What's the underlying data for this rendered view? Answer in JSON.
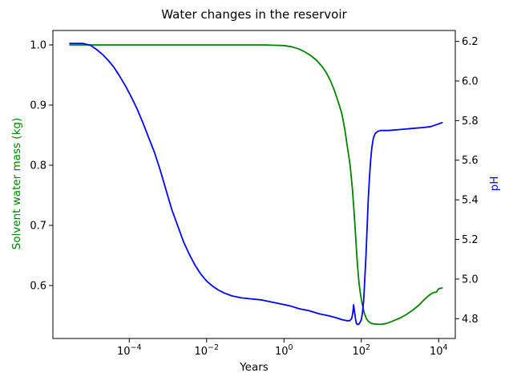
{
  "chart_data": {
    "type": "line",
    "title": "Water changes in the reservoir",
    "xlabel": "Years",
    "ylabel_left": "Solvent water mass (kg)",
    "ylabel_right": "pH",
    "x_scale": "log",
    "x_lim_log10": [
      -5.975,
      4.43
    ],
    "grid": false,
    "legend": "none",
    "x_ticks": [
      {
        "value": 0.0001,
        "base": "10",
        "exp": "−4"
      },
      {
        "value": 0.01,
        "base": "10",
        "exp": "−2"
      },
      {
        "value": 1,
        "base": "10",
        "exp": "0"
      },
      {
        "value": 100.0,
        "base": "10",
        "exp": "2"
      },
      {
        "value": 10000.0,
        "base": "10",
        "exp": "4"
      }
    ],
    "left_axis": {
      "color": "#008000",
      "lim": [
        0.512,
        1.024
      ],
      "tick_values": [
        1.0,
        0.9,
        0.8,
        0.7,
        0.6
      ],
      "tick_labels": [
        "1.0",
        "0.9",
        "0.8",
        "0.7",
        "0.6"
      ]
    },
    "right_axis": {
      "color": "#0000ff",
      "lim": [
        4.7,
        6.255
      ],
      "tick_values": [
        6.2,
        6.0,
        5.8,
        5.6,
        5.4,
        5.2,
        5.0,
        4.8
      ],
      "tick_labels": [
        "6.2",
        "6.0",
        "5.8",
        "5.6",
        "5.4",
        "5.2",
        "5.0",
        "4.8"
      ]
    },
    "series": [
      {
        "name": "solvent-water-mass",
        "axis": "left",
        "color": "#008000",
        "points": [
          [
            2.9e-06,
            1.0
          ],
          [
            1e-05,
            1.0
          ],
          [
            0.0001,
            1.0
          ],
          [
            0.001,
            1.0
          ],
          [
            0.01,
            1.0
          ],
          [
            0.1,
            1.0
          ],
          [
            0.316,
            1.0
          ],
          [
            0.501,
            0.9995
          ],
          [
            1,
            0.999
          ],
          [
            1.58,
            0.997
          ],
          [
            2.51,
            0.993
          ],
          [
            3.55,
            0.988
          ],
          [
            5.01,
            0.982
          ],
          [
            7.08,
            0.974
          ],
          [
            10,
            0.963
          ],
          [
            12.6,
            0.953
          ],
          [
            15.8,
            0.941
          ],
          [
            20,
            0.925
          ],
          [
            25.1,
            0.906
          ],
          [
            31.6,
            0.885
          ],
          [
            37.2,
            0.861
          ],
          [
            42.7,
            0.835
          ],
          [
            51.3,
            0.8
          ],
          [
            58.9,
            0.76
          ],
          [
            66.1,
            0.715
          ],
          [
            72.4,
            0.675
          ],
          [
            79.4,
            0.635
          ],
          [
            87.1,
            0.604
          ],
          [
            95.5,
            0.585
          ],
          [
            105,
            0.57
          ],
          [
            117,
            0.556
          ],
          [
            135,
            0.545
          ],
          [
            155,
            0.54
          ],
          [
            182,
            0.537
          ],
          [
            224,
            0.536
          ],
          [
            316,
            0.5355
          ],
          [
            447,
            0.537
          ],
          [
            646,
            0.541
          ],
          [
            1000,
            0.546
          ],
          [
            1480,
            0.552
          ],
          [
            2240,
            0.56
          ],
          [
            3160,
            0.568
          ],
          [
            3980,
            0.575
          ],
          [
            5010,
            0.581
          ],
          [
            6310,
            0.586
          ],
          [
            7590,
            0.5885
          ],
          [
            8710,
            0.589
          ],
          [
            9330,
            0.592
          ],
          [
            10000,
            0.5945
          ],
          [
            11200,
            0.5955
          ],
          [
            12300,
            0.596
          ]
        ]
      },
      {
        "name": "pH",
        "axis": "right",
        "color": "#0000ff",
        "points": [
          [
            2.9e-06,
            6.19
          ],
          [
            6.3e-06,
            6.19
          ],
          [
            1e-05,
            6.18
          ],
          [
            1.41e-05,
            6.16
          ],
          [
            2e-05,
            6.135
          ],
          [
            2.82e-05,
            6.105
          ],
          [
            3.98e-05,
            6.07
          ],
          [
            5.62e-05,
            6.025
          ],
          [
            7.94e-05,
            5.975
          ],
          [
            0.000112,
            5.92
          ],
          [
            0.000158,
            5.86
          ],
          [
            0.000224,
            5.79
          ],
          [
            0.000316,
            5.715
          ],
          [
            0.000447,
            5.64
          ],
          [
            0.000631,
            5.55
          ],
          [
            0.000891,
            5.45
          ],
          [
            0.00126,
            5.35
          ],
          [
            0.00178,
            5.27
          ],
          [
            0.00251,
            5.19
          ],
          [
            0.00355,
            5.125
          ],
          [
            0.00501,
            5.07
          ],
          [
            0.00708,
            5.025
          ],
          [
            0.01,
            4.99
          ],
          [
            0.0141,
            4.965
          ],
          [
            0.02,
            4.945
          ],
          [
            0.0282,
            4.93
          ],
          [
            0.0447,
            4.915
          ],
          [
            0.0794,
            4.905
          ],
          [
            0.141,
            4.9
          ],
          [
            0.251,
            4.895
          ],
          [
            0.447,
            4.885
          ],
          [
            0.794,
            4.875
          ],
          [
            1.41,
            4.865
          ],
          [
            2.51,
            4.85
          ],
          [
            4.47,
            4.84
          ],
          [
            7.94,
            4.825
          ],
          [
            14.1,
            4.815
          ],
          [
            22.4,
            4.805
          ],
          [
            31.6,
            4.795
          ],
          [
            41.7,
            4.79
          ],
          [
            50.1,
            4.79
          ],
          [
            56.2,
            4.8
          ],
          [
            60.3,
            4.83
          ],
          [
            63.1,
            4.87
          ],
          [
            66.1,
            4.84
          ],
          [
            70.8,
            4.8
          ],
          [
            75,
            4.775
          ],
          [
            81.3,
            4.77
          ],
          [
            89.1,
            4.775
          ],
          [
            100,
            4.795
          ],
          [
            107,
            4.83
          ],
          [
            115,
            4.89
          ],
          [
            123,
            5.0
          ],
          [
            132,
            5.12
          ],
          [
            141,
            5.26
          ],
          [
            151,
            5.4
          ],
          [
            162,
            5.51
          ],
          [
            174,
            5.6
          ],
          [
            186,
            5.66
          ],
          [
            204,
            5.71
          ],
          [
            229,
            5.735
          ],
          [
            263,
            5.745
          ],
          [
            316,
            5.75
          ],
          [
            501,
            5.75
          ],
          [
            1000,
            5.755
          ],
          [
            2000,
            5.76
          ],
          [
            3980,
            5.765
          ],
          [
            6310,
            5.77
          ],
          [
            8910,
            5.78
          ],
          [
            11200,
            5.787
          ],
          [
            12300,
            5.79
          ]
        ]
      }
    ]
  }
}
